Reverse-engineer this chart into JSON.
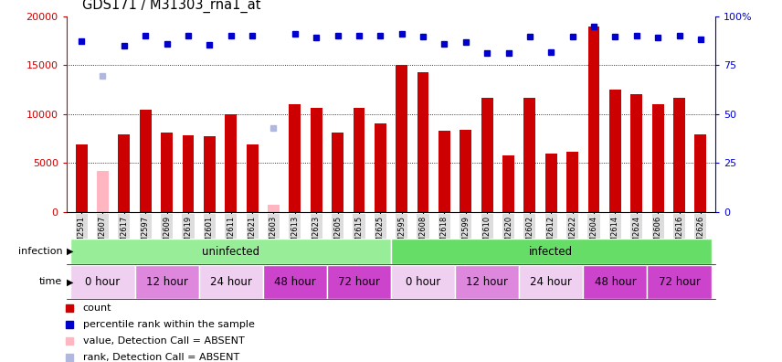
{
  "title": "GDS171 / M31303_rna1_at",
  "samples": [
    "GSM2591",
    "GSM2607",
    "GSM2617",
    "GSM2597",
    "GSM2609",
    "GSM2619",
    "GSM2601",
    "GSM2611",
    "GSM2621",
    "GSM2603",
    "GSM2613",
    "GSM2623",
    "GSM2605",
    "GSM2615",
    "GSM2625",
    "GSM2595",
    "GSM2608",
    "GSM2618",
    "GSM2599",
    "GSM2610",
    "GSM2620",
    "GSM2602",
    "GSM2612",
    "GSM2622",
    "GSM2604",
    "GSM2614",
    "GSM2624",
    "GSM2606",
    "GSM2616",
    "GSM2626"
  ],
  "counts": [
    6900,
    null,
    7900,
    10400,
    8100,
    7800,
    7700,
    10000,
    6900,
    null,
    11000,
    10600,
    8100,
    10600,
    9000,
    15000,
    14300,
    8300,
    8400,
    11700,
    5800,
    11700,
    6000,
    6100,
    19000,
    12500,
    12000,
    11000,
    11700,
    7900
  ],
  "absent_counts": [
    null,
    4200,
    null,
    null,
    null,
    null,
    null,
    null,
    null,
    700,
    null,
    null,
    null,
    null,
    null,
    null,
    null,
    null,
    null,
    null,
    null,
    null,
    null,
    null,
    null,
    null,
    null,
    null,
    null,
    null
  ],
  "percentile_ranks": [
    17500,
    null,
    17000,
    18000,
    17200,
    18000,
    17100,
    18000,
    18000,
    null,
    18200,
    17800,
    18000,
    18000,
    18000,
    18200,
    17900,
    17200,
    17400,
    16200,
    16200,
    17900,
    16300,
    17900,
    19000,
    17900,
    18000,
    17800,
    18000,
    17600
  ],
  "absent_ranks": [
    null,
    13900,
    null,
    null,
    null,
    null,
    null,
    null,
    null,
    8600,
    null,
    null,
    null,
    null,
    null,
    null,
    null,
    null,
    null,
    null,
    null,
    null,
    null,
    null,
    null,
    null,
    null,
    null,
    null,
    null
  ],
  "bar_color": "#cc0000",
  "absent_bar_color": "#ffb6c1",
  "rank_color": "#0000cc",
  "absent_rank_color": "#b0b8e0",
  "ylim_left": [
    0,
    20000
  ],
  "ylim_right": [
    0,
    100
  ],
  "yticks_left": [
    0,
    5000,
    10000,
    15000,
    20000
  ],
  "ytick_labels_left": [
    "0",
    "5000",
    "10000",
    "15000",
    "20000"
  ],
  "yticks_right": [
    0,
    25,
    50,
    75,
    100
  ],
  "ytick_labels_right": [
    "0",
    "25",
    "50",
    "75",
    "100%"
  ],
  "grid_lines": [
    5000,
    10000,
    15000
  ],
  "infection_bands": [
    {
      "label": "uninfected",
      "start": 0,
      "end": 14,
      "color": "#98ee98"
    },
    {
      "label": "infected",
      "start": 15,
      "end": 29,
      "color": "#66dd66"
    }
  ],
  "time_bands": [
    {
      "label": "0 hour",
      "start": 0,
      "end": 2,
      "color": "#f0d0f0"
    },
    {
      "label": "12 hour",
      "start": 3,
      "end": 5,
      "color": "#dd88dd"
    },
    {
      "label": "24 hour",
      "start": 6,
      "end": 8,
      "color": "#f0d0f0"
    },
    {
      "label": "48 hour",
      "start": 9,
      "end": 11,
      "color": "#cc44cc"
    },
    {
      "label": "72 hour",
      "start": 12,
      "end": 14,
      "color": "#cc44cc"
    },
    {
      "label": "0 hour",
      "start": 15,
      "end": 17,
      "color": "#f0d0f0"
    },
    {
      "label": "12 hour",
      "start": 18,
      "end": 20,
      "color": "#dd88dd"
    },
    {
      "label": "24 hour",
      "start": 21,
      "end": 23,
      "color": "#f0d0f0"
    },
    {
      "label": "48 hour",
      "start": 24,
      "end": 26,
      "color": "#cc44cc"
    },
    {
      "label": "72 hour",
      "start": 27,
      "end": 29,
      "color": "#cc44cc"
    }
  ],
  "legend_items": [
    {
      "color": "#cc0000",
      "label": "count"
    },
    {
      "color": "#0000cc",
      "label": "percentile rank within the sample"
    },
    {
      "color": "#ffb6c1",
      "label": "value, Detection Call = ABSENT"
    },
    {
      "color": "#b0b8e0",
      "label": "rank, Detection Call = ABSENT"
    }
  ]
}
